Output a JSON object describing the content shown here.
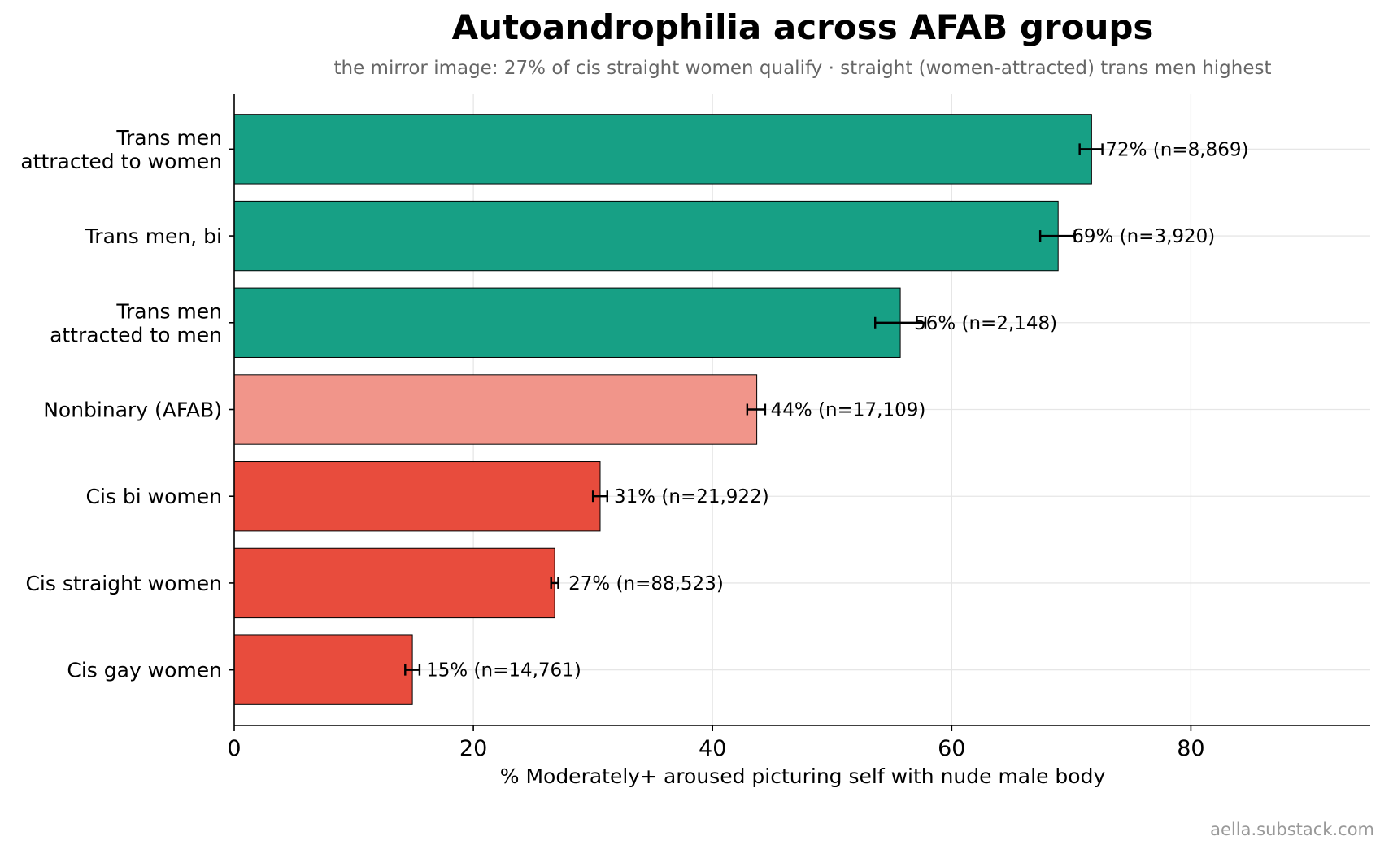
{
  "chart_data": {
    "type": "bar",
    "orientation": "horizontal",
    "title": "Autoandrophilia across AFAB groups",
    "subtitle": "the mirror image: 27% of cis straight women qualify · straight (women-attracted) trans men highest",
    "xlabel": "% Moderately+ aroused picturing self with nude male body",
    "ylabel": "",
    "xlim": [
      0,
      95
    ],
    "xticks": [
      0,
      20,
      40,
      60,
      80
    ],
    "grid": true,
    "credit": "aella.substack.com",
    "categories": [
      {
        "label_lines": [
          "Trans men",
          "attracted to women"
        ],
        "value": 71.7,
        "err_low": 70.7,
        "err_high": 72.6,
        "label": "72%  (n=8,869)",
        "color": "#17a085"
      },
      {
        "label_lines": [
          "Trans men, bi"
        ],
        "value": 68.9,
        "err_low": 67.4,
        "err_high": 70.3,
        "label": "69%  (n=3,920)",
        "color": "#17a085"
      },
      {
        "label_lines": [
          "Trans men",
          "attracted to men"
        ],
        "value": 55.7,
        "err_low": 53.6,
        "err_high": 57.8,
        "label": "56%  (n=2,148)",
        "color": "#17a085"
      },
      {
        "label_lines": [
          "Nonbinary (AFAB)"
        ],
        "value": 43.7,
        "err_low": 42.9,
        "err_high": 44.4,
        "label": "44%  (n=17,109)",
        "color": "#f1958a"
      },
      {
        "label_lines": [
          "Cis bi women"
        ],
        "value": 30.6,
        "err_low": 30.0,
        "err_high": 31.2,
        "label": "31%  (n=21,922)",
        "color": "#e84c3d"
      },
      {
        "label_lines": [
          "Cis straight women"
        ],
        "value": 26.8,
        "err_low": 26.5,
        "err_high": 27.1,
        "label": "27%  (n=88,523)",
        "color": "#e84c3d"
      },
      {
        "label_lines": [
          "Cis gay women"
        ],
        "value": 14.9,
        "err_low": 14.3,
        "err_high": 15.5,
        "label": "15%  (n=14,761)",
        "color": "#e84c3d"
      }
    ]
  }
}
